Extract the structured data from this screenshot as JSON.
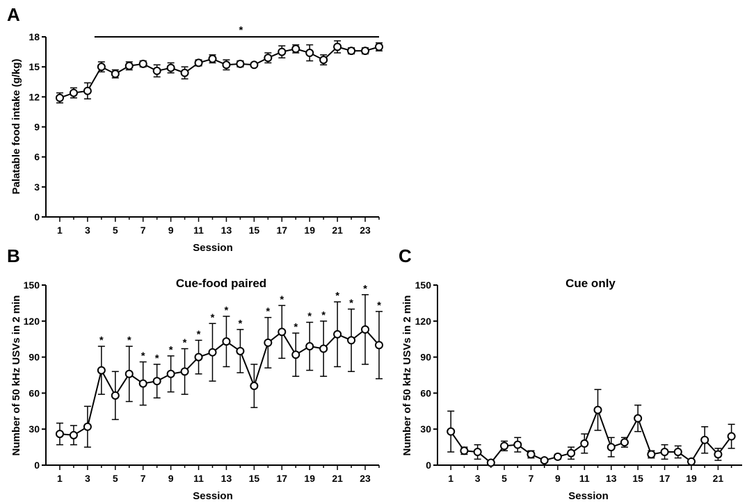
{
  "figure": {
    "panels": [
      {
        "letter": "A",
        "title": "",
        "xlabel": "Session",
        "ylabel": "Palatable food intake (g/kg)"
      },
      {
        "letter": "B",
        "title": "Cue-food paired",
        "xlabel": "Session",
        "ylabel": "Number of 50 kHz USVs in 2 min"
      },
      {
        "letter": "C",
        "title": "Cue only",
        "xlabel": "Session",
        "ylabel": "Number of 50 kHz USVs in 2 min"
      }
    ],
    "significance_symbol": "*"
  },
  "chart_data": [
    {
      "type": "line",
      "panel": "A",
      "title": "",
      "xlabel": "Session",
      "ylabel": "Palatable food intake (g/kg)",
      "ylim": [
        0,
        18
      ],
      "yticks": [
        0,
        3,
        6,
        9,
        12,
        15,
        18
      ],
      "xlim": [
        0,
        24
      ],
      "xticks": [
        1,
        3,
        5,
        7,
        9,
        11,
        13,
        15,
        17,
        19,
        21,
        23
      ],
      "x": [
        1,
        2,
        3,
        4,
        5,
        6,
        7,
        8,
        9,
        10,
        11,
        12,
        13,
        14,
        15,
        16,
        17,
        18,
        19,
        20,
        21,
        22,
        23,
        24
      ],
      "series": [
        {
          "values": [
            11.9,
            12.4,
            12.6,
            15.0,
            14.3,
            15.1,
            15.3,
            14.6,
            14.9,
            14.4,
            15.4,
            15.8,
            15.2,
            15.3,
            15.2,
            15.9,
            16.5,
            16.8,
            16.4,
            15.7,
            17.0,
            16.6,
            16.6,
            17.0
          ],
          "errors": [
            0.5,
            0.5,
            0.8,
            0.5,
            0.4,
            0.4,
            0.3,
            0.6,
            0.5,
            0.6,
            0.3,
            0.4,
            0.5,
            0.3,
            0.2,
            0.5,
            0.6,
            0.4,
            0.8,
            0.5,
            0.6,
            0.3,
            0.3,
            0.4
          ]
        }
      ],
      "significance_bar": {
        "from": 3.5,
        "to": 24,
        "label": "*"
      },
      "marker": "open-circle",
      "grid": false,
      "legend": "none"
    },
    {
      "type": "line",
      "panel": "B",
      "title": "Cue-food paired",
      "xlabel": "Session",
      "ylabel": "Number of 50 kHz USVs in 2 min",
      "ylim": [
        0,
        150
      ],
      "yticks": [
        0,
        30,
        60,
        90,
        120,
        150
      ],
      "xlim": [
        0,
        24
      ],
      "xticks": [
        1,
        3,
        5,
        7,
        9,
        11,
        13,
        15,
        17,
        19,
        21,
        23
      ],
      "x": [
        1,
        2,
        3,
        4,
        5,
        6,
        7,
        8,
        9,
        10,
        11,
        12,
        13,
        14,
        15,
        16,
        17,
        18,
        19,
        20,
        21,
        22,
        23,
        24
      ],
      "series": [
        {
          "values": [
            26,
            25,
            32,
            79,
            58,
            76,
            68,
            70,
            76,
            78,
            90,
            94,
            103,
            95,
            66,
            102,
            111,
            92,
            99,
            97,
            109,
            104,
            113,
            100
          ],
          "errors": [
            9,
            8,
            17,
            20,
            20,
            23,
            18,
            14,
            15,
            19,
            14,
            24,
            21,
            18,
            18,
            21,
            22,
            18,
            20,
            23,
            27,
            26,
            29,
            28
          ]
        }
      ],
      "significant": [
        4,
        6,
        7,
        8,
        9,
        10,
        11,
        12,
        13,
        14,
        16,
        17,
        18,
        19,
        20,
        21,
        22,
        23,
        24
      ],
      "marker": "open-circle",
      "grid": false,
      "legend": "none"
    },
    {
      "type": "line",
      "panel": "C",
      "title": "Cue only",
      "xlabel": "Session",
      "ylabel": "Number of 50 kHz USVs in 2 min",
      "ylim": [
        0,
        150
      ],
      "yticks": [
        0,
        30,
        60,
        90,
        120,
        150
      ],
      "xlim": [
        0,
        22.8
      ],
      "xticks": [
        1,
        3,
        5,
        7,
        9,
        11,
        13,
        15,
        17,
        19,
        21
      ],
      "x": [
        1,
        2,
        3,
        4,
        5,
        6,
        7,
        8,
        9,
        10,
        11,
        12,
        13,
        14,
        15,
        16,
        17,
        18,
        19,
        20,
        21,
        22
      ],
      "series": [
        {
          "values": [
            28,
            12,
            11,
            2,
            16,
            17,
            9,
            4,
            7,
            10,
            18,
            46,
            15,
            19,
            39,
            9,
            11,
            11,
            3,
            21,
            9,
            24
          ],
          "errors": [
            17,
            3,
            6,
            1,
            4,
            6,
            3,
            1,
            2,
            5,
            8,
            17,
            8,
            4,
            11,
            3,
            6,
            5,
            1,
            11,
            5,
            10
          ]
        }
      ],
      "marker": "open-circle",
      "grid": false,
      "legend": "none"
    }
  ]
}
